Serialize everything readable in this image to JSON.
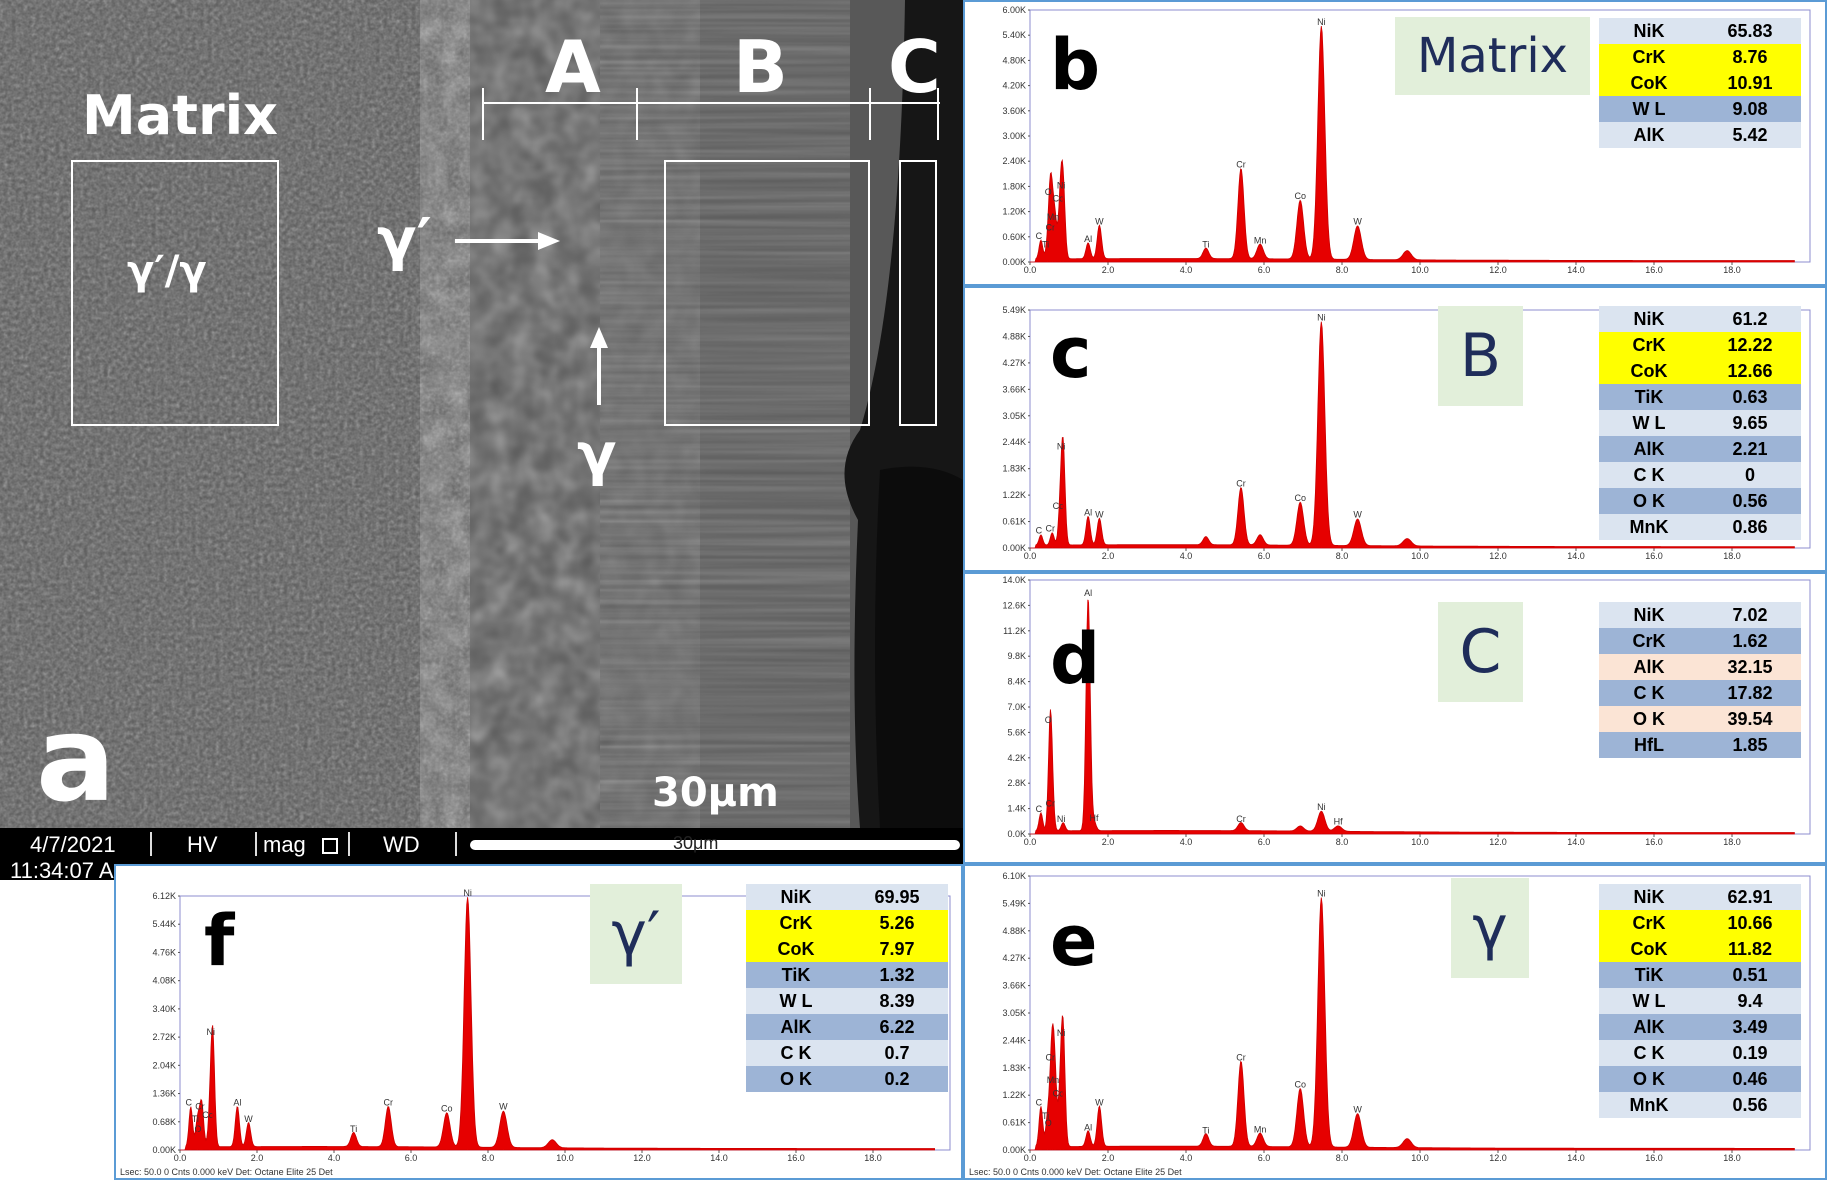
{
  "figure": {
    "sem": {
      "panel_letter": "a",
      "region_labels": {
        "matrix": "Matrix",
        "a": "A",
        "b": "B",
        "c": "C"
      },
      "box_label": "γ′/γ",
      "arrow_labels": {
        "gamma_prime": "γ′",
        "gamma": "γ"
      },
      "scale_label": "30μm",
      "databar": {
        "date": "4/7/2021",
        "time": "11:34:07 A",
        "hv": "HV",
        "mag": "mag",
        "wd": "WD",
        "scale": "30μm"
      }
    },
    "panels": [
      {
        "id": "b",
        "letter": "b",
        "phase": "Matrix",
        "phase_size": 48,
        "yticks": [
          "0.00K",
          "0.60K",
          "1.20K",
          "1.80K",
          "2.40K",
          "3.00K",
          "3.60K",
          "4.20K",
          "4.80K",
          "5.40K",
          "6.00K"
        ],
        "table": [
          {
            "k": "NiK",
            "v": "65.83",
            "c": "r0"
          },
          {
            "k": "CrK",
            "v": "8.76",
            "c": "ry"
          },
          {
            "k": "CoK",
            "v": "10.91",
            "c": "ry"
          },
          {
            "k": "W L",
            "v": "9.08",
            "c": "r1"
          },
          {
            "k": "AlK",
            "v": "5.42",
            "c": "r0"
          }
        ],
        "elements": [
          "O",
          "Ni",
          "Co",
          "Mn",
          "C",
          "Cr",
          "Ti",
          "Al",
          "W",
          "Ti",
          "Cr",
          "Mn",
          "Co",
          "Ni",
          "W"
        ],
        "footer": ""
      },
      {
        "id": "c",
        "letter": "c",
        "phase": "B",
        "phase_size": 60,
        "yticks": [
          "0.00K",
          "0.61K",
          "1.22K",
          "1.83K",
          "2.44K",
          "3.05K",
          "3.66K",
          "4.27K",
          "4.88K",
          "5.49K"
        ],
        "table": [
          {
            "k": "NiK",
            "v": "61.2",
            "c": "r0"
          },
          {
            "k": "CrK",
            "v": "12.22",
            "c": "ry"
          },
          {
            "k": "CoK",
            "v": "12.66",
            "c": "ry"
          },
          {
            "k": "TiK",
            "v": "0.63",
            "c": "r1"
          },
          {
            "k": "W L",
            "v": "9.65",
            "c": "r0"
          },
          {
            "k": "AlK",
            "v": "2.21",
            "c": "r1"
          },
          {
            "k": "C K",
            "v": "0",
            "c": "r0"
          },
          {
            "k": "O K",
            "v": "0.56",
            "c": "r1"
          },
          {
            "k": "MnK",
            "v": "0.86",
            "c": "r0"
          }
        ],
        "elements": [
          "Ni",
          "Al",
          "Co",
          "W",
          "Cr",
          "Cr",
          "Co",
          "Ni",
          "W"
        ],
        "footer": ""
      },
      {
        "id": "d",
        "letter": "d",
        "phase": "C",
        "phase_size": 60,
        "yticks": [
          "0.0K",
          "1.4K",
          "2.8K",
          "4.2K",
          "5.6K",
          "7.0K",
          "8.4K",
          "9.8K",
          "11.2K",
          "12.6K",
          "14.0K"
        ],
        "table": [
          {
            "k": "NiK",
            "v": "7.02",
            "c": "r0"
          },
          {
            "k": "CrK",
            "v": "1.62",
            "c": "r1"
          },
          {
            "k": "AlK",
            "v": "32.15",
            "c": "rp"
          },
          {
            "k": "C K",
            "v": "17.82",
            "c": "r1"
          },
          {
            "k": "O K",
            "v": "39.54",
            "c": "rp"
          },
          {
            "k": "HfL",
            "v": "1.85",
            "c": "r1"
          }
        ],
        "elements": [
          "Al",
          "O",
          "C",
          "Cr",
          "Ni",
          "Hf",
          "Cr",
          "Ni",
          "Hf"
        ],
        "footer": ""
      },
      {
        "id": "f",
        "letter": "f",
        "phase": "γ′",
        "phase_size": 60,
        "yticks": [
          "0.00K",
          "0.68K",
          "1.36K",
          "2.04K",
          "2.72K",
          "3.40K",
          "4.08K",
          "4.76K",
          "5.44K",
          "6.12K"
        ],
        "table": [
          {
            "k": "NiK",
            "v": "69.95",
            "c": "r0"
          },
          {
            "k": "CrK",
            "v": "5.26",
            "c": "ry"
          },
          {
            "k": "CoK",
            "v": "7.97",
            "c": "ry"
          },
          {
            "k": "TiK",
            "v": "1.32",
            "c": "r1"
          },
          {
            "k": "W L",
            "v": "8.39",
            "c": "r0"
          },
          {
            "k": "AlK",
            "v": "6.22",
            "c": "r1"
          },
          {
            "k": "C K",
            "v": "0.7",
            "c": "r0"
          },
          {
            "k": "O K",
            "v": "0.2",
            "c": "r1"
          }
        ],
        "elements": [
          "Ni",
          "C",
          "Cr",
          "Ti",
          "Co",
          "O",
          "Al",
          "W",
          "Ti",
          "Cr",
          "Co",
          "Ni",
          "W"
        ],
        "footer": "Lsec: 50.0 0 Cnts  0.000 keV Det: Octane Elite 25 Det"
      },
      {
        "id": "e",
        "letter": "e",
        "phase": "γ",
        "phase_size": 60,
        "yticks": [
          "0.00K",
          "0.61K",
          "1.22K",
          "1.83K",
          "2.44K",
          "3.05K",
          "3.66K",
          "4.27K",
          "4.88K",
          "5.49K",
          "6.10K"
        ],
        "table": [
          {
            "k": "NiK",
            "v": "62.91",
            "c": "r0"
          },
          {
            "k": "CrK",
            "v": "10.66",
            "c": "ry"
          },
          {
            "k": "CoK",
            "v": "11.82",
            "c": "ry"
          },
          {
            "k": "TiK",
            "v": "0.51",
            "c": "r1"
          },
          {
            "k": "W L",
            "v": "9.4",
            "c": "r0"
          },
          {
            "k": "AlK",
            "v": "3.49",
            "c": "r1"
          },
          {
            "k": "C K",
            "v": "0.19",
            "c": "r0"
          },
          {
            "k": "O K",
            "v": "0.46",
            "c": "r1"
          },
          {
            "k": "MnK",
            "v": "0.56",
            "c": "r0"
          }
        ],
        "elements": [
          "Ni",
          "Cr",
          "Mn",
          "C",
          "Co",
          "Ti",
          "O",
          "Al",
          "W",
          "Ti",
          "Cr",
          "Mn",
          "Co",
          "Ni",
          "W"
        ],
        "footer": "Lsec: 50.0 0 Cnts  0.000 keV Det: Octane Elite 25 Det"
      }
    ],
    "xticks": [
      "0.0",
      "2.0",
      "4.0",
      "6.0",
      "8.0",
      "10.0",
      "12.0",
      "14.0",
      "16.0",
      "18.0"
    ]
  },
  "chart_data": [
    {
      "type": "bar",
      "panel": "b",
      "x_label_unit": "keV",
      "xlim": [
        0,
        20
      ],
      "ylim": [
        0,
        6000
      ],
      "peaks": [
        {
          "el": "C",
          "x": 0.28,
          "y": 450
        },
        {
          "el": "O",
          "x": 0.52,
          "y": 1500
        },
        {
          "el": "Ti",
          "x": 0.45,
          "y": 250
        },
        {
          "el": "Cr",
          "x": 0.57,
          "y": 650
        },
        {
          "el": "Mn",
          "x": 0.64,
          "y": 900
        },
        {
          "el": "Co",
          "x": 0.78,
          "y": 1350
        },
        {
          "el": "Ni",
          "x": 0.85,
          "y": 1650
        },
        {
          "el": "Al",
          "x": 1.49,
          "y": 380
        },
        {
          "el": "W",
          "x": 1.78,
          "y": 800
        },
        {
          "el": "Ti",
          "x": 4.51,
          "y": 250
        },
        {
          "el": "Cr",
          "x": 5.41,
          "y": 2150
        },
        {
          "el": "Mn",
          "x": 5.9,
          "y": 350
        },
        {
          "el": "Co",
          "x": 6.93,
          "y": 1400
        },
        {
          "el": "Ni",
          "x": 7.47,
          "y": 5550
        },
        {
          "el": "W",
          "x": 8.4,
          "y": 800
        },
        {
          "el": "",
          "x": 9.67,
          "y": 220
        }
      ]
    },
    {
      "type": "bar",
      "panel": "c",
      "x_label_unit": "keV",
      "xlim": [
        0,
        20
      ],
      "ylim": [
        0,
        5800
      ],
      "peaks": [
        {
          "el": "C",
          "x": 0.28,
          "y": 250
        },
        {
          "el": "Cr",
          "x": 0.57,
          "y": 300
        },
        {
          "el": "Co",
          "x": 0.78,
          "y": 850
        },
        {
          "el": "Ni",
          "x": 0.85,
          "y": 2300
        },
        {
          "el": "Al",
          "x": 1.49,
          "y": 700
        },
        {
          "el": "W",
          "x": 1.78,
          "y": 650
        },
        {
          "el": "",
          "x": 4.51,
          "y": 200
        },
        {
          "el": "Cr",
          "x": 5.41,
          "y": 1400
        },
        {
          "el": "",
          "x": 5.9,
          "y": 250
        },
        {
          "el": "Co",
          "x": 6.93,
          "y": 1050
        },
        {
          "el": "Ni",
          "x": 7.47,
          "y": 5450
        },
        {
          "el": "W",
          "x": 8.4,
          "y": 650
        },
        {
          "el": "",
          "x": 9.67,
          "y": 180
        }
      ]
    },
    {
      "type": "bar",
      "panel": "d",
      "x_label_unit": "keV",
      "xlim": [
        0,
        20
      ],
      "ylim": [
        0,
        14000
      ],
      "peaks": [
        {
          "el": "C",
          "x": 0.28,
          "y": 1000
        },
        {
          "el": "O",
          "x": 0.52,
          "y": 5900
        },
        {
          "el": "Cr",
          "x": 0.57,
          "y": 1300
        },
        {
          "el": "Ni",
          "x": 0.85,
          "y": 450
        },
        {
          "el": "Al",
          "x": 1.49,
          "y": 12900
        },
        {
          "el": "Hf",
          "x": 1.64,
          "y": 500
        },
        {
          "el": "Cr",
          "x": 5.41,
          "y": 450
        },
        {
          "el": "",
          "x": 6.93,
          "y": 280
        },
        {
          "el": "Ni",
          "x": 7.47,
          "y": 1100
        },
        {
          "el": "Hf",
          "x": 7.9,
          "y": 300
        }
      ]
    },
    {
      "type": "bar",
      "panel": "f",
      "x_label_unit": "keV",
      "xlim": [
        0,
        20
      ],
      "ylim": [
        0,
        6300
      ],
      "peaks": [
        {
          "el": "C",
          "x": 0.28,
          "y": 1000
        },
        {
          "el": "O",
          "x": 0.52,
          "y": 350
        },
        {
          "el": "Ti",
          "x": 0.45,
          "y": 600
        },
        {
          "el": "Cr",
          "x": 0.57,
          "y": 900
        },
        {
          "el": "Co",
          "x": 0.78,
          "y": 700
        },
        {
          "el": "Ni",
          "x": 0.85,
          "y": 2750
        },
        {
          "el": "Al",
          "x": 1.49,
          "y": 1000
        },
        {
          "el": "W",
          "x": 1.78,
          "y": 600
        },
        {
          "el": "Ti",
          "x": 4.51,
          "y": 350
        },
        {
          "el": "Cr",
          "x": 5.41,
          "y": 1000
        },
        {
          "el": "Co",
          "x": 6.93,
          "y": 850
        },
        {
          "el": "Ni",
          "x": 7.47,
          "y": 6200
        },
        {
          "el": "W",
          "x": 8.4,
          "y": 900
        },
        {
          "el": "",
          "x": 9.67,
          "y": 200
        }
      ]
    },
    {
      "type": "bar",
      "panel": "e",
      "x_label_unit": "keV",
      "xlim": [
        0,
        20
      ],
      "ylim": [
        0,
        6100
      ],
      "peaks": [
        {
          "el": "C",
          "x": 0.28,
          "y": 900
        },
        {
          "el": "O",
          "x": 0.52,
          "y": 450
        },
        {
          "el": "Ti",
          "x": 0.45,
          "y": 600
        },
        {
          "el": "Cr",
          "x": 0.57,
          "y": 1900
        },
        {
          "el": "Mn",
          "x": 0.64,
          "y": 1400
        },
        {
          "el": "Co",
          "x": 0.78,
          "y": 1100
        },
        {
          "el": "Ni",
          "x": 0.85,
          "y": 2450
        },
        {
          "el": "Al",
          "x": 1.49,
          "y": 350
        },
        {
          "el": "W",
          "x": 1.78,
          "y": 900
        },
        {
          "el": "Ti",
          "x": 4.51,
          "y": 280
        },
        {
          "el": "Cr",
          "x": 5.41,
          "y": 1900
        },
        {
          "el": "Mn",
          "x": 5.9,
          "y": 300
        },
        {
          "el": "Co",
          "x": 6.93,
          "y": 1300
        },
        {
          "el": "Ni",
          "x": 7.47,
          "y": 5550
        },
        {
          "el": "W",
          "x": 8.4,
          "y": 750
        },
        {
          "el": "",
          "x": 9.67,
          "y": 200
        }
      ]
    }
  ]
}
